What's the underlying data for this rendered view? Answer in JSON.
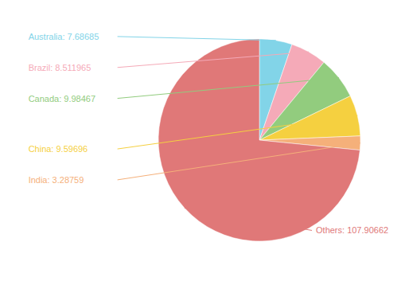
{
  "chart_data": {
    "type": "pie",
    "categories": [
      "Australia",
      "Brazil",
      "Canada",
      "China",
      "India",
      "Others"
    ],
    "values": [
      7.68685,
      8.511965,
      9.98467,
      9.59696,
      3.28759,
      107.90662
    ],
    "colors": [
      "#82d4e8",
      "#f5aab8",
      "#92cc7e",
      "#f5d040",
      "#f5b07a",
      "#e07878"
    ],
    "data_labels": true,
    "value_labels": [
      "Australia: 7.68685",
      "Brazil: 8.511965",
      "Canada: 9.98467",
      "China: 9.59696",
      "India: 3.28759",
      "Others: 107.90662"
    ]
  }
}
